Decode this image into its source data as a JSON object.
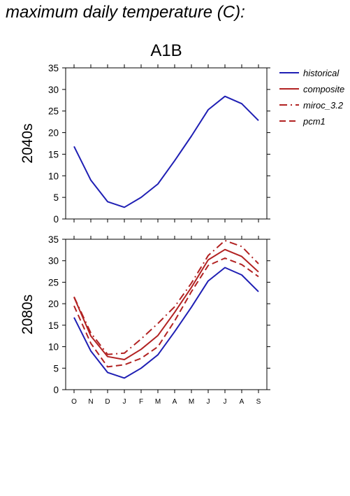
{
  "heading": "maximum daily temperature (C):",
  "chart_data": {
    "type": "line",
    "scenario": "A1B",
    "categories": [
      "O",
      "N",
      "D",
      "J",
      "F",
      "M",
      "A",
      "M",
      "J",
      "J",
      "A",
      "S"
    ],
    "ylim": [
      0,
      35
    ],
    "yticks": [
      0,
      5,
      10,
      15,
      20,
      25,
      30,
      35
    ],
    "grid": false,
    "legend_position": "top-right outside",
    "legend": [
      {
        "name": "historical",
        "color": "#1f1fb4",
        "dash": "solid"
      },
      {
        "name": "composite",
        "color": "#b22222",
        "dash": "solid"
      },
      {
        "name": "miroc_3.2",
        "color": "#b22222",
        "dash": "dashdot"
      },
      {
        "name": "pcm1",
        "color": "#b22222",
        "dash": "dashed"
      }
    ],
    "panels": [
      {
        "ylabel": "2040s",
        "series": [
          {
            "name": "historical",
            "values": [
              16.8,
              9.0,
              4.0,
              2.7,
              5.0,
              8.1,
              13.5,
              19.2,
              25.3,
              28.4,
              26.7,
              22.8
            ]
          }
        ]
      },
      {
        "ylabel": "2080s",
        "series": [
          {
            "name": "historical",
            "values": [
              16.8,
              9.0,
              4.0,
              2.7,
              5.0,
              8.1,
              13.5,
              19.2,
              25.3,
              28.4,
              26.7,
              22.8
            ]
          },
          {
            "name": "composite",
            "values": [
              21.5,
              12.5,
              7.7,
              7.0,
              9.4,
              12.6,
              18.0,
              23.8,
              30.2,
              32.6,
              31.0,
              27.4
            ]
          },
          {
            "name": "miroc_3.2",
            "values": [
              21.6,
              13.2,
              8.2,
              8.5,
              11.8,
              15.4,
              19.3,
              24.8,
              31.2,
              34.7,
              33.3,
              29.3
            ]
          },
          {
            "name": "pcm1",
            "values": [
              19.5,
              10.8,
              5.3,
              5.8,
              7.3,
              10.0,
              16.0,
              22.8,
              28.9,
              30.6,
              29.1,
              26.3
            ]
          }
        ]
      }
    ]
  }
}
